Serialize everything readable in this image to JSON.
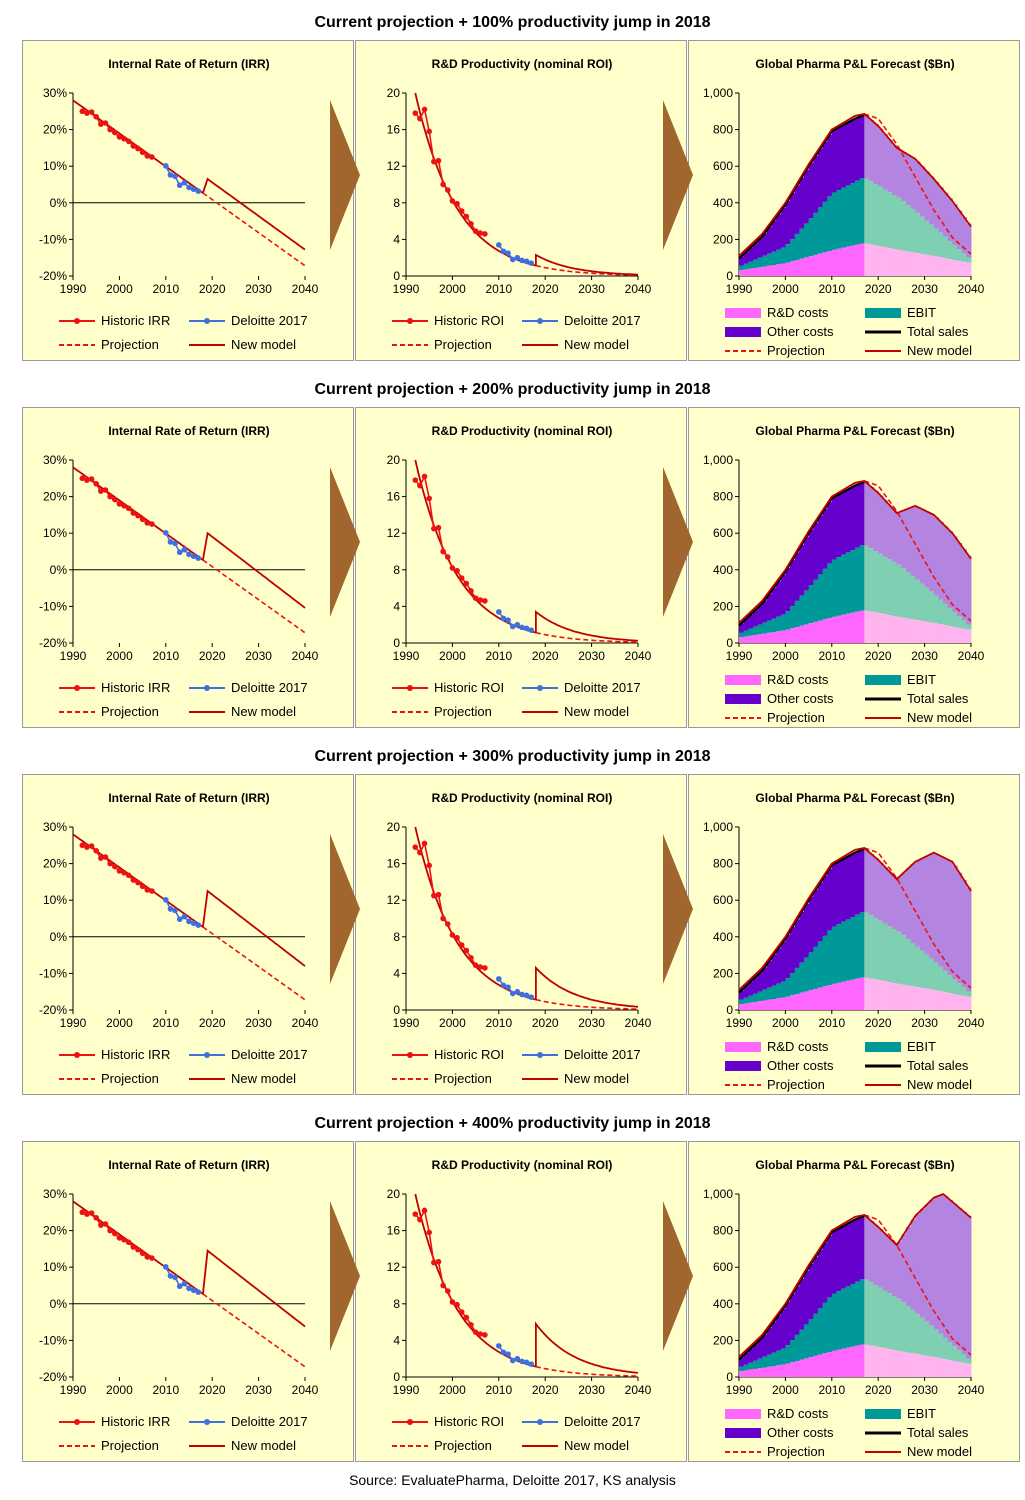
{
  "source": "Source: EvaluatePharma, Deloitte 2017, KS analysis",
  "colors": {
    "panel_bg": "#ffffcc",
    "historic": "#ee1111",
    "deloitte": "#3f6fe0",
    "model": "#c00000",
    "rd_costs": "#ff66ff",
    "rd_costs_future": "#ffb3ef",
    "ebit": "#009999",
    "ebit_future": "#7fcfb3",
    "other_costs": "#6600cc",
    "other_costs_future": "#b385e0",
    "total_sales": "#000000",
    "arrow": "#a0662d"
  },
  "rows": [
    {
      "title": "Current projection + 100% productivity jump in 2018",
      "jump": 1
    },
    {
      "title": "Current projection + 200% productivity jump in 2018",
      "jump": 2
    },
    {
      "title": "Current projection + 300% productivity jump in 2018",
      "jump": 3
    },
    {
      "title": "Current projection + 400% productivity jump in 2018",
      "jump": 4
    }
  ],
  "chart_data": [
    {
      "id": "irr",
      "type": "line",
      "title": "Internal Rate of Return (IRR)",
      "x_ticks": [
        "1990",
        "2000",
        "2010",
        "2020",
        "2030",
        "2040"
      ],
      "y_ticks": [
        "30%",
        "20%",
        "10%",
        "0%",
        "-10%",
        "-20%"
      ],
      "xlim": [
        1990,
        2040
      ],
      "ylim": [
        -20,
        30
      ],
      "legend": [
        "Historic IRR",
        "Deloitte 2017",
        "Projection",
        "New model"
      ],
      "series": [
        {
          "name": "Historic IRR",
          "x": [
            1992,
            1993,
            1994,
            1995,
            1996,
            1997,
            1998,
            1999,
            2000,
            2001,
            2002,
            2003,
            2004,
            2005,
            2006,
            2007
          ],
          "values": [
            25,
            24.5,
            24.8,
            23.5,
            21.5,
            21.8,
            20,
            19.2,
            18,
            17.5,
            16.8,
            15.5,
            14.8,
            13.8,
            12.8,
            12.5
          ]
        },
        {
          "name": "Deloitte 2017",
          "x": [
            2010,
            2011,
            2012,
            2013,
            2014,
            2015,
            2016,
            2017
          ],
          "values": [
            10.1,
            7.6,
            7.2,
            4.8,
            5.5,
            4.2,
            3.7,
            3.2
          ]
        },
        {
          "name": "Projection",
          "x": [
            1990,
            2040
          ],
          "values": [
            28,
            -17.2
          ]
        },
        {
          "name": "New model",
          "x": [
            1990,
            2018
          ],
          "values": [
            28,
            2.5
          ],
          "after_jump": {
            "start": 2019,
            "end": 2040,
            "start_values": [
              6.5,
              10,
              12.5,
              14.5
            ],
            "end_values": [
              -12.8,
              -10.4,
              -8,
              -6.2
            ]
          }
        }
      ]
    },
    {
      "id": "roi",
      "type": "line",
      "title": "R&D Productivity (nominal ROI)",
      "x_ticks": [
        "1990",
        "2000",
        "2010",
        "2020",
        "2030",
        "2040"
      ],
      "y_ticks": [
        "20",
        "16",
        "12",
        "8",
        "4",
        "0"
      ],
      "xlim": [
        1990,
        2040
      ],
      "ylim": [
        0,
        20
      ],
      "legend": [
        "Historic ROI",
        "Deloitte 2017",
        "Projection",
        "New model"
      ],
      "series": [
        {
          "name": "Historic ROI",
          "x": [
            1992,
            1993,
            1994,
            1995,
            1996,
            1997,
            1998,
            1999,
            2000,
            2001,
            2002,
            2003,
            2004,
            2005,
            2006,
            2007
          ],
          "values": [
            17.8,
            17.2,
            18.2,
            15.8,
            12.5,
            12.6,
            10,
            9.4,
            8.2,
            7.9,
            7.1,
            6.5,
            5.7,
            4.9,
            4.7,
            4.6
          ]
        },
        {
          "name": "Deloitte 2017",
          "x": [
            2010,
            2011,
            2012,
            2013,
            2014,
            2015,
            2016,
            2017
          ],
          "values": [
            3.4,
            2.7,
            2.5,
            1.8,
            2.0,
            1.7,
            1.6,
            1.4
          ]
        },
        {
          "name": "Projection",
          "x": [
            1992,
            2040
          ],
          "values": [
            20,
            0.1
          ]
        },
        {
          "name": "New model",
          "x": [
            1992,
            2018
          ],
          "values": [
            20,
            1.2
          ],
          "after_jump": {
            "start": 2018,
            "end": 2040,
            "start_values": [
              2.3,
              3.4,
              4.6,
              5.8
            ],
            "end_values": [
              0.15,
              0.25,
              0.35,
              0.45
            ]
          }
        }
      ]
    },
    {
      "id": "pl",
      "type": "area",
      "title": "Global Pharma P&L Forecast ($Bn)",
      "x_ticks": [
        "1990",
        "2000",
        "2010",
        "2020",
        "2030",
        "2040"
      ],
      "y_ticks": [
        "1,000",
        "800",
        "600",
        "400",
        "200",
        "0"
      ],
      "xlim": [
        1990,
        2040
      ],
      "ylim": [
        0,
        1000
      ],
      "legend": [
        "R&D costs",
        "EBIT",
        "Other costs",
        "Total sales",
        "Projection",
        "New model"
      ],
      "total_sales": {
        "x": [
          1990,
          1995,
          2000,
          2005,
          2010,
          2015,
          2017
        ],
        "values": [
          95,
          215,
          390,
          600,
          790,
          860,
          880
        ]
      },
      "projection": {
        "x": [
          2017,
          2020,
          2024,
          2028,
          2032,
          2036,
          2040
        ],
        "values": [
          885,
          860,
          720,
          540,
          360,
          210,
          120
        ]
      },
      "new_model": [
        {
          "x": [
            2017,
            2020,
            2024,
            2028,
            2032,
            2036,
            2040
          ],
          "values": [
            885,
            820,
            700,
            640,
            530,
            410,
            270
          ]
        },
        {
          "x": [
            2017,
            2020,
            2024,
            2028,
            2032,
            2036,
            2040
          ],
          "values": [
            885,
            820,
            710,
            750,
            700,
            600,
            460
          ]
        },
        {
          "x": [
            2017,
            2020,
            2024,
            2028,
            2032,
            2036,
            2040
          ],
          "values": [
            885,
            820,
            715,
            810,
            860,
            810,
            650
          ]
        },
        {
          "x": [
            2017,
            2020,
            2024,
            2028,
            2032,
            2034,
            2040
          ],
          "values": [
            885,
            820,
            720,
            880,
            980,
            1000,
            870
          ]
        }
      ],
      "rd_costs": {
        "x": [
          1990,
          2000,
          2010,
          2017,
          2025,
          2032,
          2040
        ],
        "values": [
          30,
          70,
          140,
          180,
          140,
          110,
          70
        ]
      },
      "ebit_top": {
        "x": [
          1990,
          2000,
          2005,
          2010,
          2017,
          2025,
          2032,
          2040
        ],
        "values": [
          50,
          160,
          300,
          450,
          540,
          420,
          270,
          90
        ]
      }
    }
  ]
}
